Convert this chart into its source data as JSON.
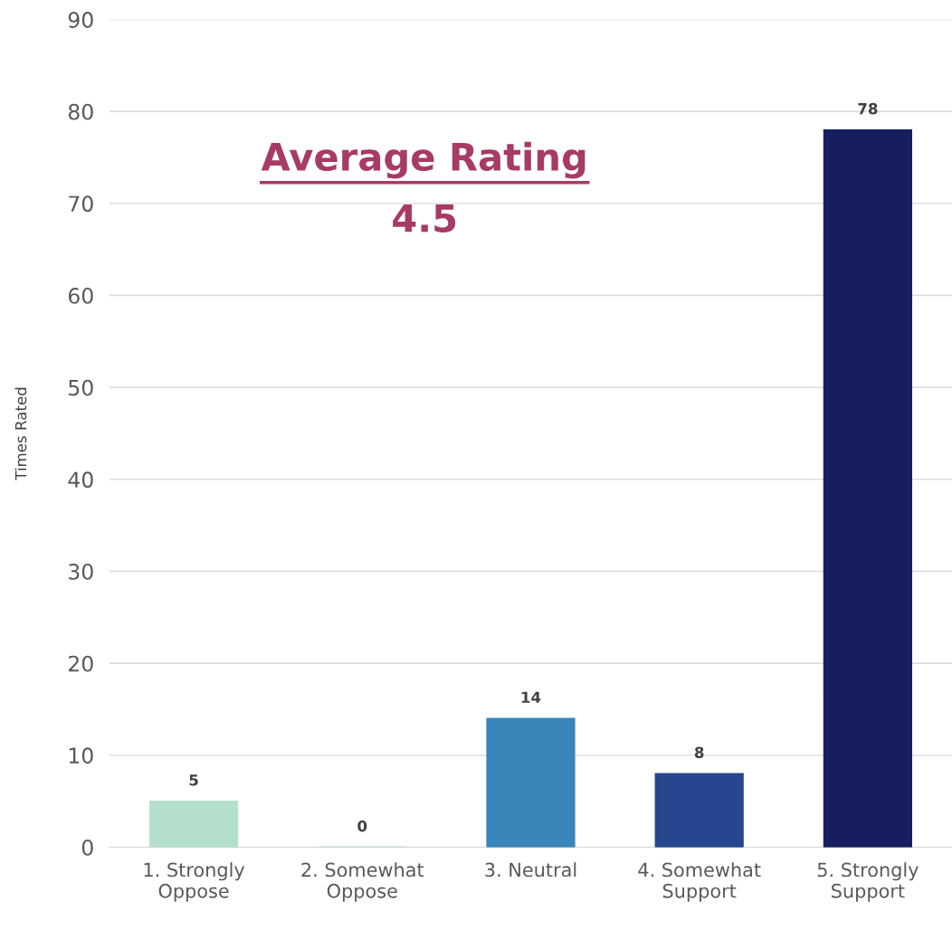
{
  "chart_data": {
    "type": "bar",
    "ylabel": "Times Rated",
    "categories": [
      "1. Strongly\nOppose",
      "2. Somewhat\nOppose",
      "3. Neutral",
      "4. Somewhat\nSupport",
      "5. Strongly\nSupport"
    ],
    "values": [
      5,
      0,
      14,
      8,
      78
    ],
    "colors": [
      "#b3dfcc",
      "#a7d3c4",
      "#3886b9",
      "#26478f",
      "#161e5f"
    ],
    "ylim": [
      0,
      90
    ],
    "yticks": [
      0,
      10,
      20,
      30,
      40,
      50,
      60,
      70,
      80,
      90
    ],
    "grid": "y",
    "data_labels": true,
    "legend": false,
    "annotations": [
      "Average Rating",
      "4.5"
    ]
  }
}
